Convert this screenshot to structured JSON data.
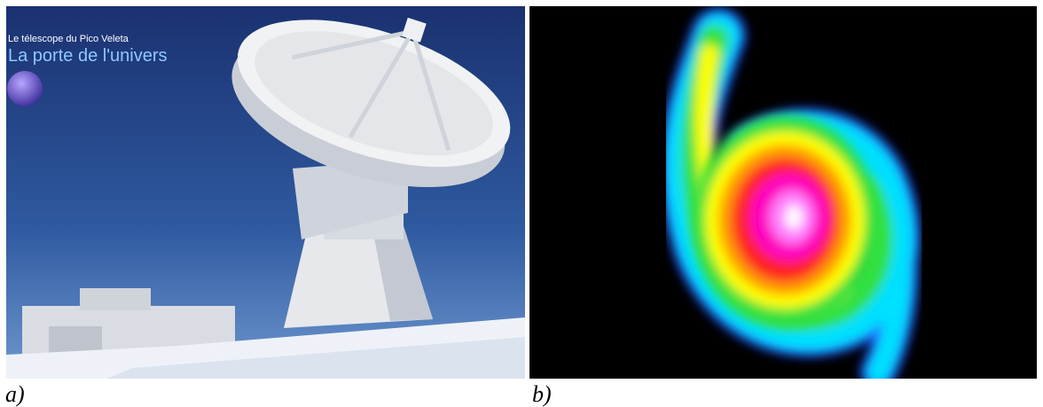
{
  "panels": [
    {
      "caption": "a)",
      "overlay_small": "Le télescope du Pico Veleta",
      "overlay_title": "La porte de l'univers"
    },
    {
      "caption": "b)"
    }
  ]
}
